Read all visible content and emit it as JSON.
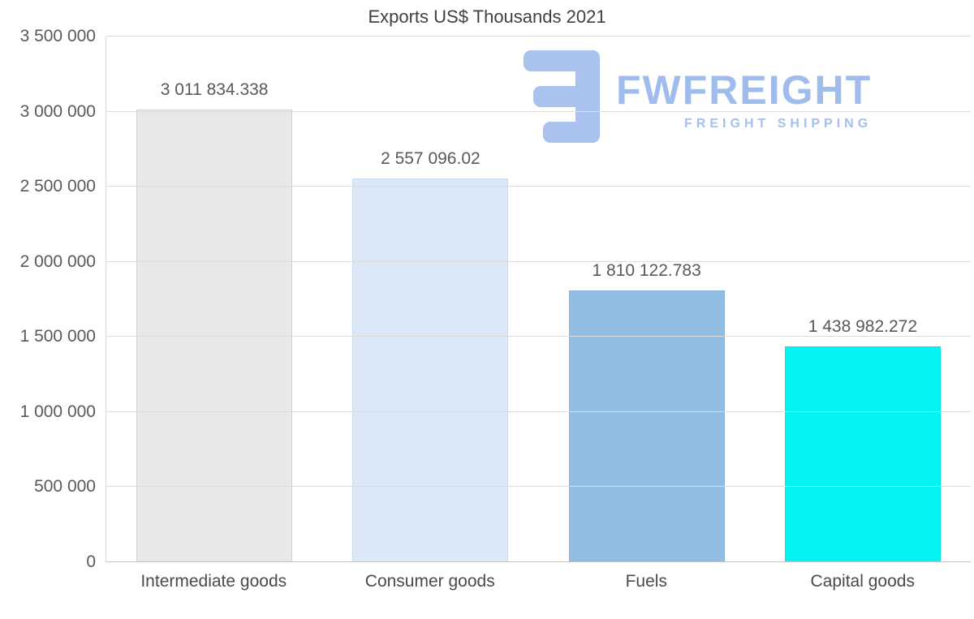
{
  "title": "Exports US$ Thousands 2021",
  "watermark": {
    "brand": "FWFREIGHT",
    "tagline": "FREIGHT SHIPPING",
    "color": "#9fbcec"
  },
  "chart_data": {
    "type": "bar",
    "title": "Exports US$ Thousands 2021",
    "xlabel": "",
    "ylabel": "",
    "grid": true,
    "legend": false,
    "ylim": [
      0,
      3500000
    ],
    "categories": [
      "Intermediate goods",
      "Consumer goods",
      "Fuels",
      "Capital goods"
    ],
    "values": [
      3011834.338,
      2557096.02,
      1810122.783,
      1438982.272
    ],
    "value_labels": [
      "3 011 834.338",
      "2 557 096.02",
      "1 810 122.783",
      "1 438 982.272"
    ],
    "bar_colors": [
      "#e8e8e8",
      "#dbe8f7",
      "#92bde2",
      "#06f2f2"
    ],
    "bar_borders": [
      "#d2d2d2",
      "#c9dcf2",
      "#85b4dd",
      "#00e4e4"
    ],
    "yticks": [
      {
        "value": 0,
        "label": "0"
      },
      {
        "value": 500000,
        "label": "500 000"
      },
      {
        "value": 1000000,
        "label": "1 000 000"
      },
      {
        "value": 1500000,
        "label": "1 500 000"
      },
      {
        "value": 2000000,
        "label": "2 000 000"
      },
      {
        "value": 2500000,
        "label": "2 500 000"
      },
      {
        "value": 3000000,
        "label": "3 000 000"
      },
      {
        "value": 3500000,
        "label": "3 500 000"
      }
    ]
  }
}
